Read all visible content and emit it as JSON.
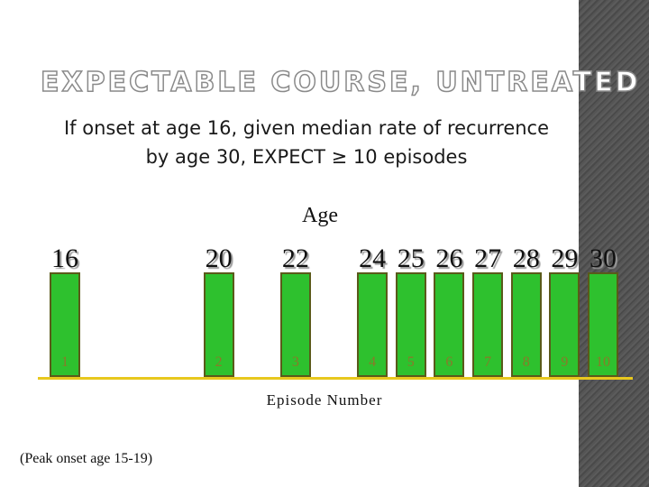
{
  "title": "EXPECTABLE COURSE, UNTREATED",
  "subtitle": {
    "line1": "If onset at age 16, given median rate of recurrence",
    "line2": "by age 30, EXPECT ≥ 10 episodes"
  },
  "age_heading": "Age",
  "episode_axis_label": "Episode Number",
  "footnote": "(Peak onset age 15-19)",
  "colors": {
    "bar": "#2ec12e",
    "baseline": "#e8c81e",
    "side_strip": "#4f4f4f"
  },
  "chart_data": {
    "type": "bar",
    "episodes": [
      "1",
      "2",
      "3",
      "4",
      "5",
      "6",
      "7",
      "8",
      "9",
      "10"
    ],
    "ages": [
      "16",
      "20",
      "22",
      "24",
      "25",
      "26",
      "27",
      "28",
      "29",
      "30"
    ],
    "ylabel": "Age",
    "xlabel": "Episode Number"
  }
}
